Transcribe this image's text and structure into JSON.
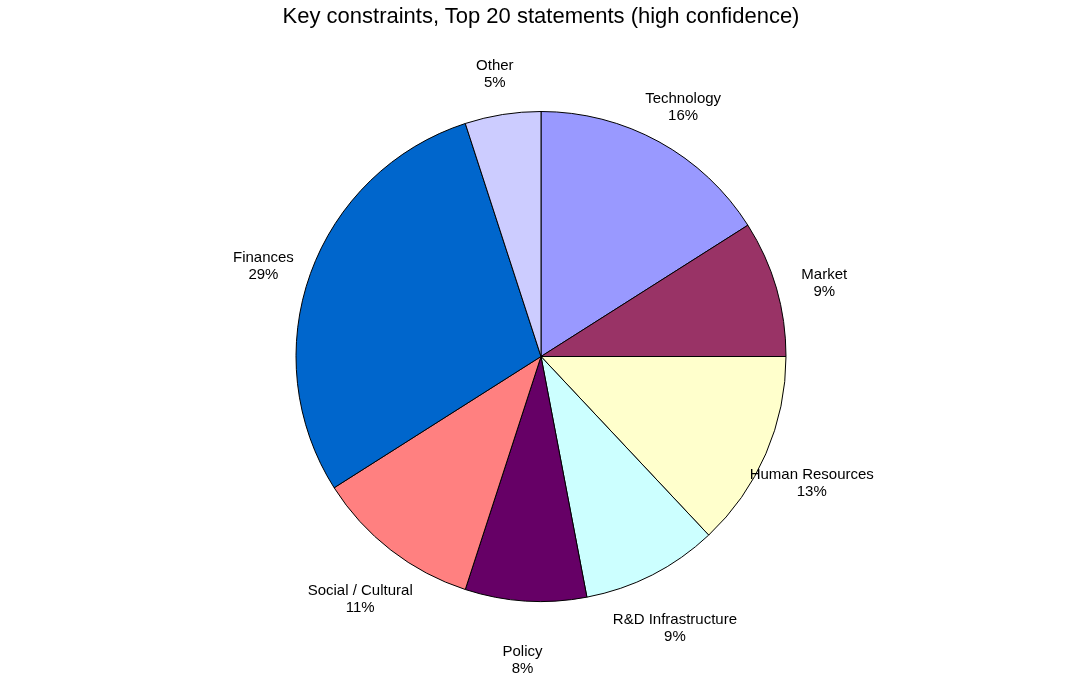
{
  "chart_data": {
    "type": "pie",
    "title": "Key constraints, Top 20 statements (high confidence)",
    "categories": [
      "Technology",
      "Market",
      "Human Resources",
      "R&D Infrastructure",
      "Policy",
      "Social / Cultural",
      "Finances",
      "Other"
    ],
    "values": [
      16,
      9,
      13,
      9,
      8,
      11,
      29,
      5
    ],
    "value_labels": [
      "16%",
      "9%",
      "13%",
      "9%",
      "8%",
      "11%",
      "29%",
      "5%"
    ],
    "colors": [
      "#9999ff",
      "#993366",
      "#ffffcc",
      "#ccffff",
      "#660066",
      "#ff8080",
      "#0066cc",
      "#ccccff"
    ],
    "legend": false
  }
}
